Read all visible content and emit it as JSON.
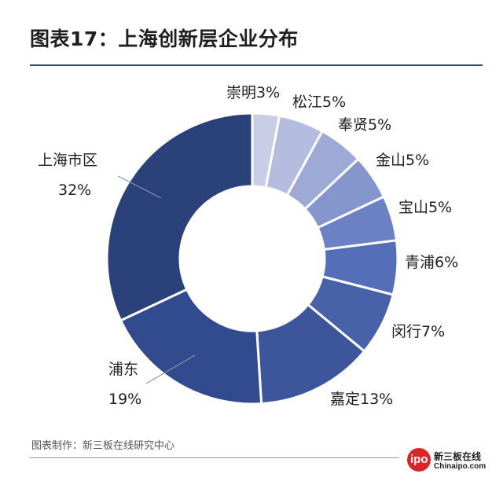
{
  "title": "图表17：上海创新层企业分布",
  "source": "图表制作：新三板在线研究中心",
  "logo": {
    "circle_text": "ipo",
    "main": "新三板在线",
    "sub": "Chinaipo.com"
  },
  "chart_data": {
    "type": "pie",
    "donut": true,
    "order": "clockwise from top",
    "slices": [
      {
        "name": "崇明",
        "value": 3,
        "label": "崇明3%",
        "color": "#c9cee6"
      },
      {
        "name": "松江",
        "value": 5,
        "label": "松江5%",
        "color": "#b4bce0"
      },
      {
        "name": "奉贤",
        "value": 5,
        "label": "奉贤5%",
        "color": "#9eaad6"
      },
      {
        "name": "金山",
        "value": 5,
        "label": "金山5%",
        "color": "#8596cd"
      },
      {
        "name": "宝山",
        "value": 5,
        "label": "宝山5%",
        "color": "#6b81c3"
      },
      {
        "name": "青浦",
        "value": 6,
        "label": "青浦6%",
        "color": "#546eb8"
      },
      {
        "name": "闵行",
        "value": 7,
        "label": "闵行7%",
        "color": "#4862aa"
      },
      {
        "name": "嘉定",
        "value": 13,
        "label": "嘉定13%",
        "color": "#3c559b"
      },
      {
        "name": "浦东",
        "value": 19,
        "label": [
          "浦东",
          "19%"
        ],
        "color": "#324b8e"
      },
      {
        "name": "上海市区",
        "value": 32,
        "label": [
          "上海市区",
          "32%"
        ],
        "color": "#2a4179"
      }
    ]
  }
}
